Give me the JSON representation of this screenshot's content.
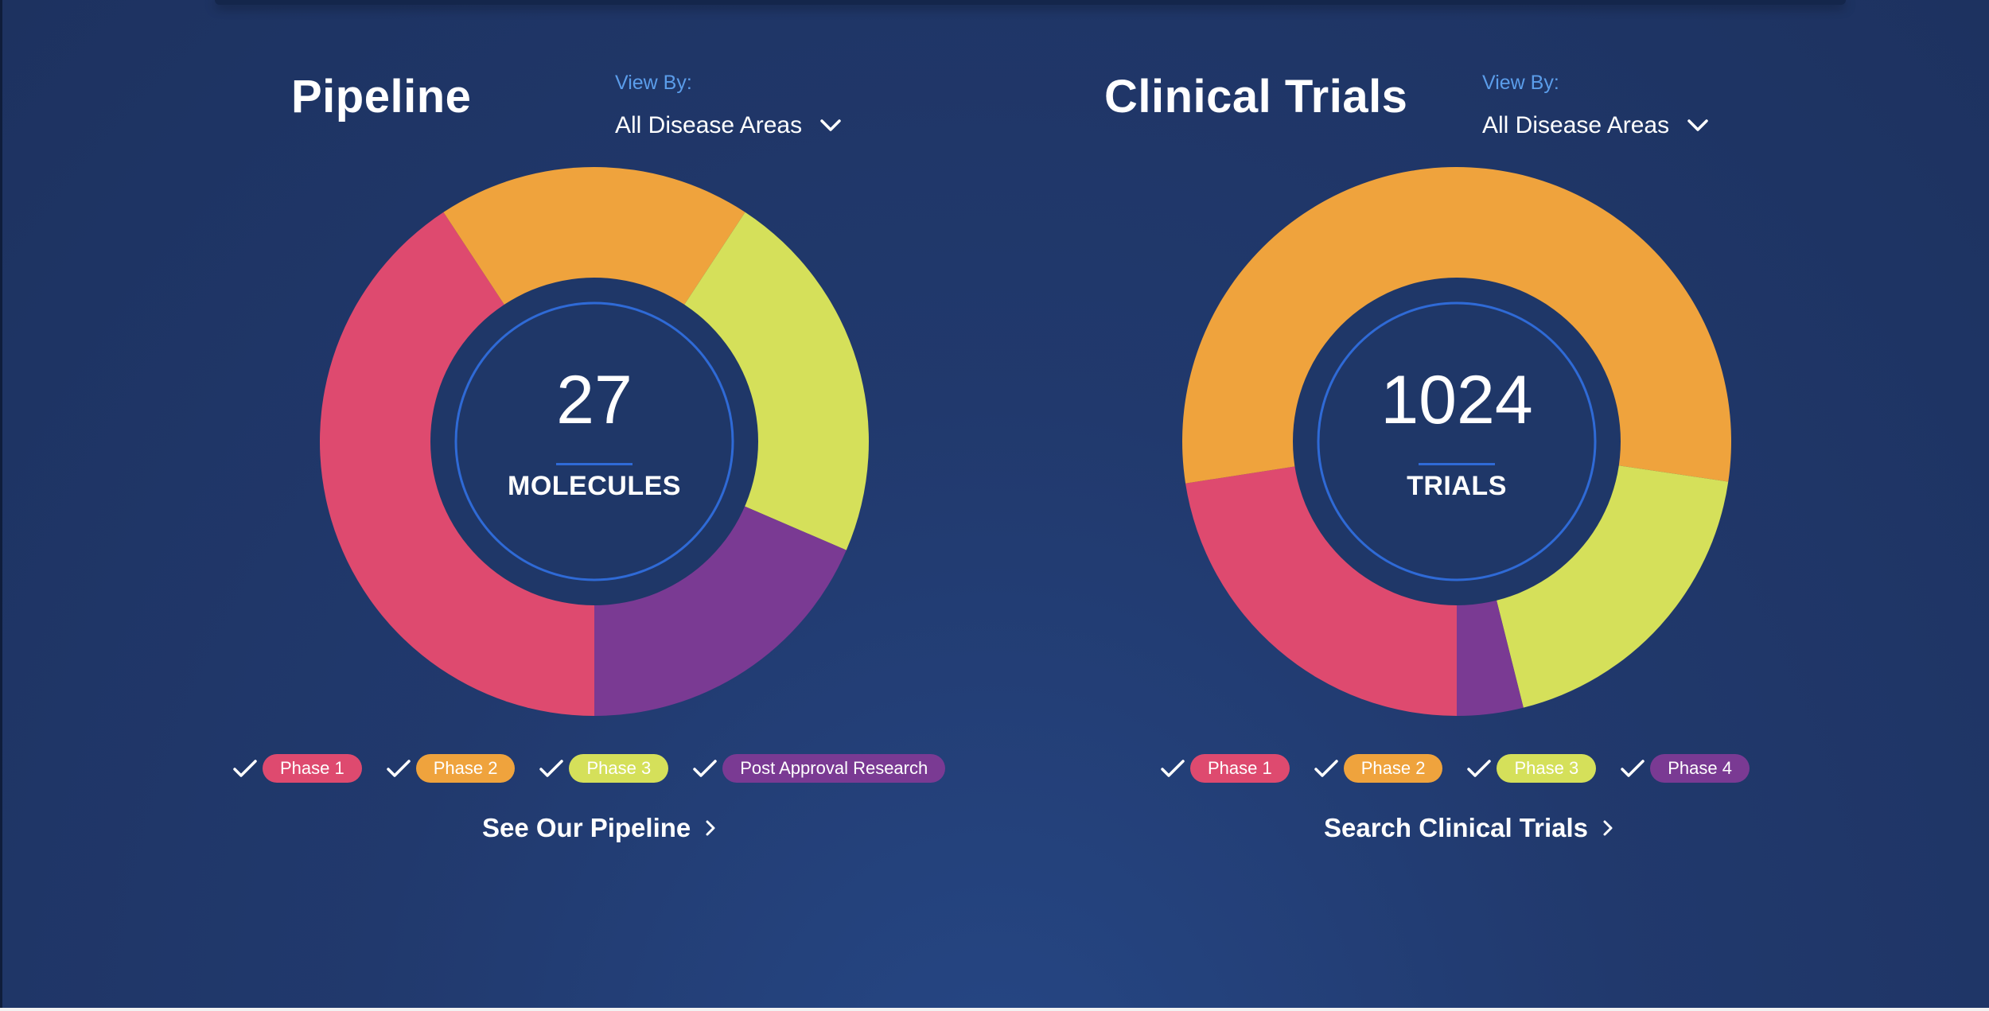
{
  "colors": {
    "phase1": "#de4a6f",
    "phase2": "#efa33d",
    "phase3": "#d5e05a",
    "phase4": "#7a3a93",
    "inner": "#1f3768",
    "ring": "#2f6ad6",
    "viewby_label": "#5b9dea"
  },
  "icons": {
    "dropdown": "chevron-down-icon",
    "legend_check": "checkmark-icon",
    "cta_arrow": "chevron-right-icon"
  },
  "pipeline": {
    "title": "Pipeline",
    "viewby": {
      "label": "View By:",
      "value": "All Disease Areas"
    },
    "total": "27",
    "unit": "MOLECULES",
    "legend": [
      {
        "key": "phase1",
        "label": "Phase 1"
      },
      {
        "key": "phase2",
        "label": "Phase 2"
      },
      {
        "key": "phase3",
        "label": "Phase 3"
      },
      {
        "key": "phase4",
        "label": "Post Approval Research"
      }
    ],
    "cta": "See Our Pipeline"
  },
  "trials": {
    "title": "Clinical Trials",
    "viewby": {
      "label": "View By:",
      "value": "All Disease Areas"
    },
    "total": "1024",
    "unit": "TRIALS",
    "legend": [
      {
        "key": "phase1",
        "label": "Phase 1"
      },
      {
        "key": "phase2",
        "label": "Phase 2"
      },
      {
        "key": "phase3",
        "label": "Phase 3"
      },
      {
        "key": "phase4",
        "label": "Phase 4"
      }
    ],
    "cta": "Search Clinical Trials"
  },
  "chart_data": [
    {
      "type": "pie",
      "categories": [
        "Phase 1",
        "Phase 2",
        "Phase 3",
        "Post Approval Research"
      ],
      "values": [
        11,
        5,
        6,
        5
      ],
      "total_label": "27"
    },
    {
      "type": "pie",
      "categories": [
        "Phase 1",
        "Phase 2",
        "Phase 3",
        "Phase 4"
      ],
      "values": [
        231,
        561,
        192,
        40
      ],
      "total_label": "1024"
    }
  ]
}
